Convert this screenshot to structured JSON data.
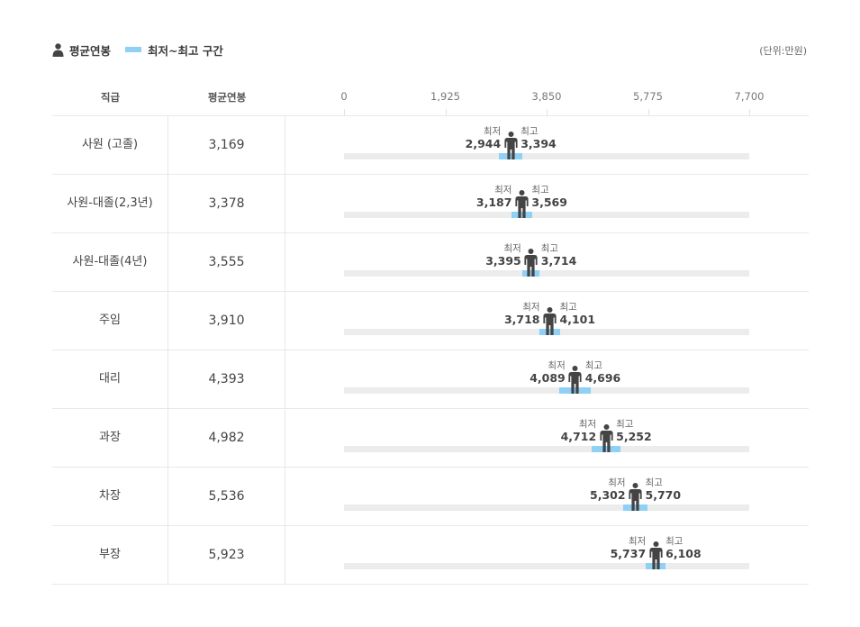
{
  "legend": {
    "avg_label": "평균연봉",
    "range_label": "최저~최고 구간"
  },
  "unit_label": "(단위:만원)",
  "colors": {
    "range": "#8fd0f7",
    "track": "#ececec",
    "person": "#444444"
  },
  "chart_data": {
    "type": "range",
    "columns": {
      "rank": "직급",
      "avg": "평균연봉"
    },
    "axis": {
      "min": 0,
      "max": 7700,
      "ticks": [
        "0",
        "1,925",
        "3,850",
        "5,775",
        "7,700"
      ]
    },
    "min_label": "최저",
    "max_label": "최고",
    "rows": [
      {
        "rank": "사원 (고졸)",
        "avg": 3169,
        "avg_text": "3,169",
        "min": 2944,
        "min_text": "2,944",
        "max": 3394,
        "max_text": "3,394"
      },
      {
        "rank": "사원-대졸(2,3년)",
        "avg": 3378,
        "avg_text": "3,378",
        "min": 3187,
        "min_text": "3,187",
        "max": 3569,
        "max_text": "3,569"
      },
      {
        "rank": "사원-대졸(4년)",
        "avg": 3555,
        "avg_text": "3,555",
        "min": 3395,
        "min_text": "3,395",
        "max": 3714,
        "max_text": "3,714"
      },
      {
        "rank": "주임",
        "avg": 3910,
        "avg_text": "3,910",
        "min": 3718,
        "min_text": "3,718",
        "max": 4101,
        "max_text": "4,101"
      },
      {
        "rank": "대리",
        "avg": 4393,
        "avg_text": "4,393",
        "min": 4089,
        "min_text": "4,089",
        "max": 4696,
        "max_text": "4,696"
      },
      {
        "rank": "과장",
        "avg": 4982,
        "avg_text": "4,982",
        "min": 4712,
        "min_text": "4,712",
        "max": 5252,
        "max_text": "5,252"
      },
      {
        "rank": "차장",
        "avg": 5536,
        "avg_text": "5,536",
        "min": 5302,
        "min_text": "5,302",
        "max": 5770,
        "max_text": "5,770"
      },
      {
        "rank": "부장",
        "avg": 5923,
        "avg_text": "5,923",
        "min": 5737,
        "min_text": "5,737",
        "max": 6108,
        "max_text": "6,108"
      }
    ]
  }
}
